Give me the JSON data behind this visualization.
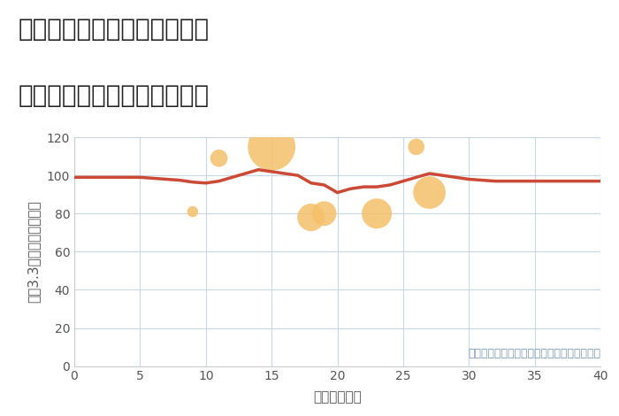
{
  "title_line1": "兵庫県西宮市上ヶ原四番町の",
  "title_line2": "築年数別中古マンション価格",
  "xlabel": "築年数（年）",
  "ylabel": "坪（3.3㎡）単価（万円）",
  "annotation": "円の大きさは、取引のあった物件面積を示す",
  "xlim": [
    0,
    40
  ],
  "ylim": [
    0,
    120
  ],
  "xticks": [
    0,
    5,
    10,
    15,
    20,
    25,
    30,
    35,
    40
  ],
  "yticks": [
    0,
    20,
    40,
    60,
    80,
    100,
    120
  ],
  "background_color": "#ffffff",
  "grid_color": "#c8d8e8",
  "line_color": "#cc4a35",
  "line_x": [
    0,
    1,
    2,
    3,
    4,
    5,
    6,
    7,
    8,
    9,
    10,
    11,
    12,
    13,
    14,
    15,
    16,
    17,
    18,
    19,
    20,
    21,
    22,
    23,
    24,
    25,
    26,
    27,
    28,
    29,
    30,
    31,
    32,
    33,
    34,
    35,
    36,
    37,
    38,
    39,
    40
  ],
  "line_y": [
    99,
    99,
    99,
    99,
    99,
    99,
    98.5,
    98,
    97.5,
    96.5,
    96,
    97,
    99,
    101,
    103,
    102,
    101,
    100,
    96,
    95,
    91,
    93,
    94,
    94,
    95,
    97,
    99,
    101,
    100,
    99,
    98,
    97.5,
    97,
    97,
    97,
    97,
    97,
    97,
    97,
    97,
    97
  ],
  "scatter_x": [
    9,
    11,
    15,
    18,
    19,
    23,
    26,
    27
  ],
  "scatter_y": [
    81,
    109,
    115,
    78,
    80,
    80,
    115,
    91
  ],
  "scatter_sizes": [
    80,
    200,
    1500,
    500,
    400,
    600,
    180,
    700
  ],
  "scatter_color": "#f5c06a",
  "scatter_alpha": 0.85,
  "title_fontsize": 20,
  "axis_label_fontsize": 11,
  "tick_fontsize": 10,
  "annotation_fontsize": 9,
  "annotation_color": "#7a9abf",
  "title_color": "#222222",
  "axis_text_color": "#555555"
}
